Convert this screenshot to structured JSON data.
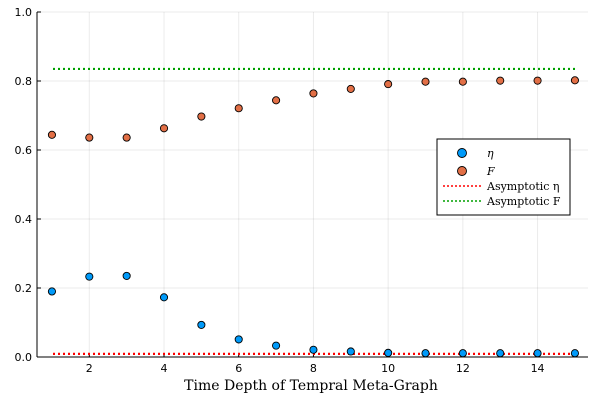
{
  "chart_data": {
    "type": "scatter",
    "xlabel": "Time Depth of Tempral Meta-Graph",
    "ylabel": "",
    "title": "",
    "xlim": [
      0.6,
      15.35
    ],
    "ylim": [
      0,
      1
    ],
    "x_ticks": [
      2,
      4,
      6,
      8,
      10,
      12,
      14
    ],
    "y_ticks": [
      0.0,
      0.2,
      0.4,
      0.6,
      0.8,
      1.0
    ],
    "x_tick_labels": [
      "2",
      "4",
      "6",
      "8",
      "10",
      "12",
      "14"
    ],
    "y_tick_labels": [
      "0.0",
      "0.2",
      "0.4",
      "0.6",
      "0.8",
      "1.0"
    ],
    "grid": true,
    "legend_position": "right",
    "series": [
      {
        "name": "η",
        "kind": "scatter",
        "color": "#009af9",
        "x": [
          1,
          2,
          3,
          4,
          5,
          6,
          7,
          8,
          9,
          10,
          11,
          12,
          13,
          14,
          15
        ],
        "y": [
          0.19,
          0.233,
          0.235,
          0.173,
          0.093,
          0.051,
          0.033,
          0.021,
          0.016,
          0.012,
          0.011,
          0.011,
          0.011,
          0.011,
          0.011
        ]
      },
      {
        "name": "F",
        "kind": "scatter",
        "color": "#e26f46",
        "x": [
          1,
          2,
          3,
          4,
          5,
          6,
          7,
          8,
          9,
          10,
          11,
          12,
          13,
          14,
          15
        ],
        "y": [
          0.644,
          0.636,
          0.636,
          0.663,
          0.697,
          0.721,
          0.744,
          0.764,
          0.777,
          0.791,
          0.798,
          0.798,
          0.801,
          0.801,
          0.802
        ]
      },
      {
        "name": "Asymptotic η",
        "kind": "hline",
        "color": "#ff0000",
        "y": 0.009
      },
      {
        "name": "Asymptotic F",
        "kind": "hline",
        "color": "#00a000",
        "y": 0.835
      }
    ]
  },
  "legend": {
    "items": [
      {
        "label": "η",
        "italic": true
      },
      {
        "label": "F",
        "italic": true
      },
      {
        "label": "Asymptotic η",
        "italic": false
      },
      {
        "label": "Asymptotic F",
        "italic": false
      }
    ]
  }
}
